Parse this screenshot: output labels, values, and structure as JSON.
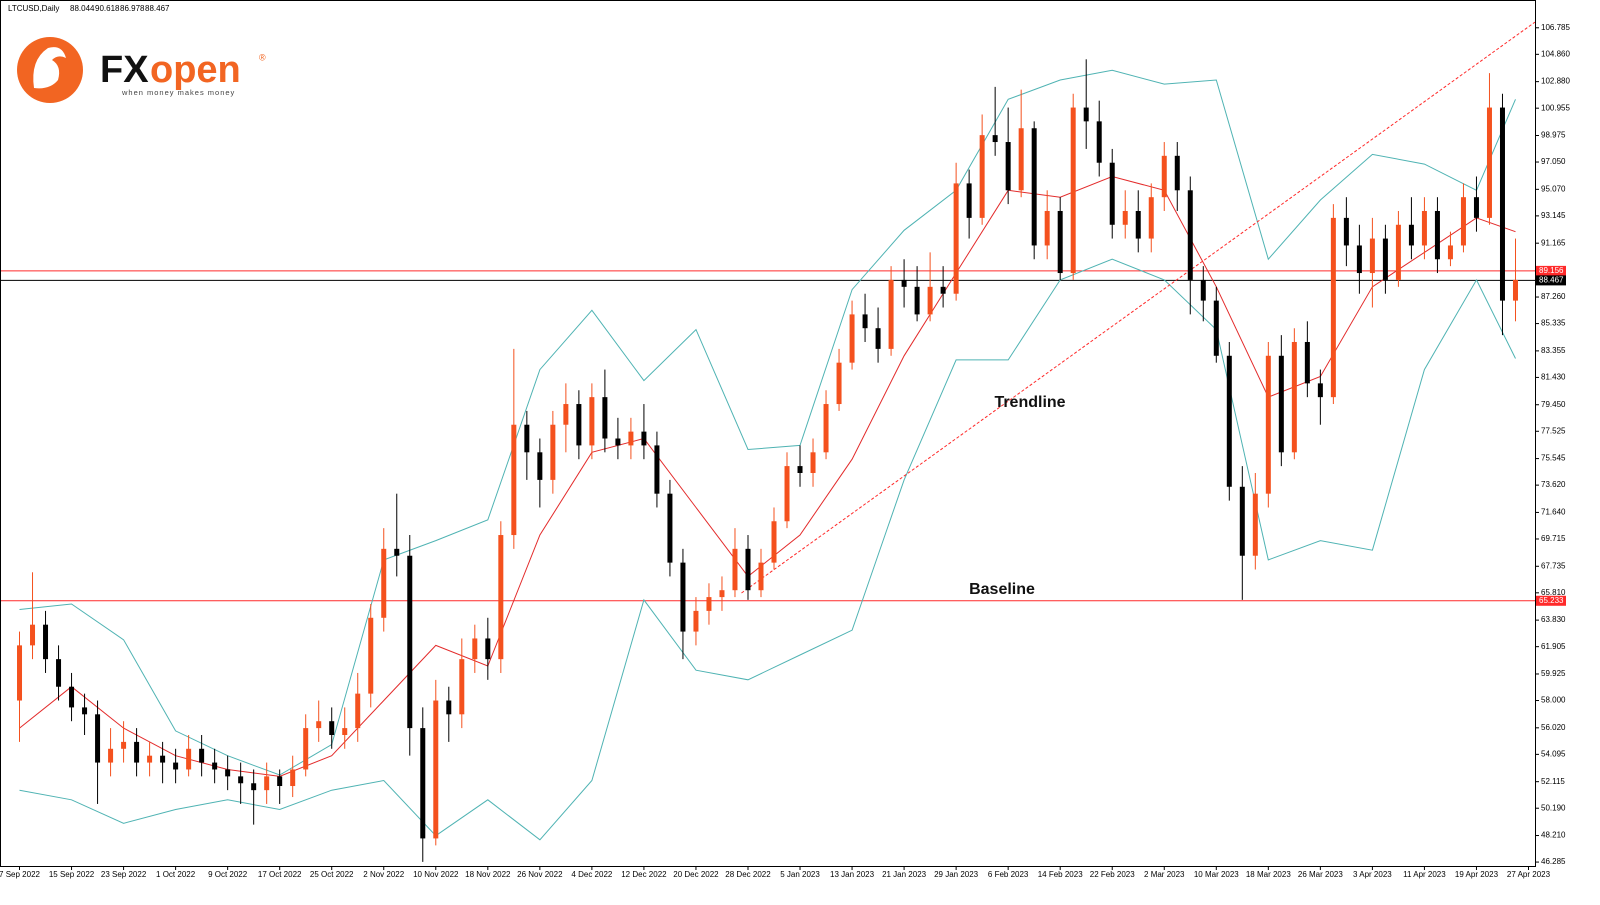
{
  "header": {
    "symbol": "LTCUSD,Daily",
    "ohlc": [
      88.044,
      90.618,
      86.978,
      88.467
    ]
  },
  "logo": {
    "brand_dark": "FX",
    "brand_light": "open",
    "mark": "®",
    "slogan": "when money makes money"
  },
  "chart_data": {
    "type": "candlestick",
    "up_color": "#f4511e",
    "down_color": "#000000",
    "xlim": [
      "2022-09-04",
      "2023-04-28"
    ],
    "ylim": [
      46.0,
      108.8
    ],
    "xticks": [
      {
        "value": "2022-09-07",
        "label": "7 Sep 2022"
      },
      {
        "value": "2022-09-15",
        "label": "15 Sep 2022"
      },
      {
        "value": "2022-09-23",
        "label": "23 Sep 2022"
      },
      {
        "value": "2022-10-01",
        "label": "1 Oct 2022"
      },
      {
        "value": "2022-10-09",
        "label": "9 Oct 2022"
      },
      {
        "value": "2022-10-17",
        "label": "17 Oct 2022"
      },
      {
        "value": "2022-10-25",
        "label": "25 Oct 2022"
      },
      {
        "value": "2022-11-02",
        "label": "2 Nov 2022"
      },
      {
        "value": "2022-11-10",
        "label": "10 Nov 2022"
      },
      {
        "value": "2022-11-18",
        "label": "18 Nov 2022"
      },
      {
        "value": "2022-11-26",
        "label": "26 Nov 2022"
      },
      {
        "value": "2022-12-04",
        "label": "4 Dec 2022"
      },
      {
        "value": "2022-12-12",
        "label": "12 Dec 2022"
      },
      {
        "value": "2022-12-20",
        "label": "20 Dec 2022"
      },
      {
        "value": "2022-12-28",
        "label": "28 Dec 2022"
      },
      {
        "value": "2023-01-05",
        "label": "5 Jan 2023"
      },
      {
        "value": "2023-01-13",
        "label": "13 Jan 2023"
      },
      {
        "value": "2023-01-21",
        "label": "21 Jan 2023"
      },
      {
        "value": "2023-01-29",
        "label": "29 Jan 2023"
      },
      {
        "value": "2023-02-06",
        "label": "6 Feb 2023"
      },
      {
        "value": "2023-02-14",
        "label": "14 Feb 2023"
      },
      {
        "value": "2023-02-22",
        "label": "22 Feb 2023"
      },
      {
        "value": "2023-03-02",
        "label": "2 Mar 2023"
      },
      {
        "value": "2023-03-10",
        "label": "10 Mar 2023"
      },
      {
        "value": "2023-03-18",
        "label": "18 Mar 2023"
      },
      {
        "value": "2023-03-26",
        "label": "26 Mar 2023"
      },
      {
        "value": "2023-04-03",
        "label": "3 Apr 2023"
      },
      {
        "value": "2023-04-11",
        "label": "11 Apr 2023"
      },
      {
        "value": "2023-04-19",
        "label": "19 Apr 2023"
      },
      {
        "value": "2023-04-27",
        "label": "27 Apr 2023"
      }
    ],
    "yticks": [
      106.785,
      {
        "value": 104.86,
        "label": "104.860"
      },
      {
        "value": 102.88,
        "label": "102.880"
      },
      100.955,
      98.975,
      {
        "value": 97.05,
        "label": "97.050"
      },
      {
        "value": 95.07,
        "label": "95.070"
      },
      93.145,
      91.165,
      {
        "value": 87.26,
        "label": "87.260"
      },
      85.335,
      83.355,
      {
        "value": 81.43,
        "label": "81.430"
      },
      {
        "value": 79.45,
        "label": "79.450"
      },
      77.525,
      75.545,
      {
        "value": 73.62,
        "label": "73.620"
      },
      {
        "value": 71.64,
        "label": "71.640"
      },
      69.715,
      67.735,
      {
        "value": 65.81,
        "label": "65.810"
      },
      {
        "value": 63.83,
        "label": "63.830"
      },
      61.905,
      59.925,
      {
        "value": 58.0,
        "label": "58.000"
      },
      {
        "value": 56.02,
        "label": "56.020"
      },
      54.095,
      52.115,
      {
        "value": 50.19,
        "label": "50.190"
      },
      {
        "value": 48.21,
        "label": "48.210"
      },
      46.285
    ],
    "hlines": [
      {
        "value": 89.156,
        "color": "#ff2a2a"
      },
      {
        "value": 88.467,
        "color": "#000000"
      },
      {
        "value": 65.233,
        "color": "#ff2a2a"
      }
    ],
    "annotations": [
      "Trendline",
      "Baseline"
    ],
    "trendline": {
      "color": "#ff2a2a",
      "x": [
        "2022-12-27",
        "2023-04-28"
      ],
      "values": [
        65.8,
        107.2
      ]
    },
    "candles": {
      "x": [
        "2022-09-07",
        "2022-09-09",
        "2022-09-11",
        "2022-09-13",
        "2022-09-15",
        "2022-09-17",
        "2022-09-19",
        "2022-09-21",
        "2022-09-23",
        "2022-09-25",
        "2022-09-27",
        "2022-09-29",
        "2022-10-01",
        "2022-10-03",
        "2022-10-05",
        "2022-10-07",
        "2022-10-09",
        "2022-10-11",
        "2022-10-13",
        "2022-10-15",
        "2022-10-17",
        "2022-10-19",
        "2022-10-21",
        "2022-10-23",
        "2022-10-25",
        "2022-10-27",
        "2022-10-29",
        "2022-10-31",
        "2022-11-02",
        "2022-11-04",
        "2022-11-06",
        "2022-11-08",
        "2022-11-10",
        "2022-11-12",
        "2022-11-14",
        "2022-11-16",
        "2022-11-18",
        "2022-11-20",
        "2022-11-22",
        "2022-11-24",
        "2022-11-26",
        "2022-11-28",
        "2022-11-30",
        "2022-12-02",
        "2022-12-04",
        "2022-12-06",
        "2022-12-08",
        "2022-12-10",
        "2022-12-12",
        "2022-12-14",
        "2022-12-16",
        "2022-12-18",
        "2022-12-20",
        "2022-12-22",
        "2022-12-24",
        "2022-12-26",
        "2022-12-28",
        "2022-12-30",
        "2023-01-01",
        "2023-01-03",
        "2023-01-05",
        "2023-01-07",
        "2023-01-09",
        "2023-01-11",
        "2023-01-13",
        "2023-01-15",
        "2023-01-17",
        "2023-01-19",
        "2023-01-21",
        "2023-01-23",
        "2023-01-25",
        "2023-01-27",
        "2023-01-29",
        "2023-01-31",
        "2023-02-02",
        "2023-02-04",
        "2023-02-06",
        "2023-02-08",
        "2023-02-10",
        "2023-02-12",
        "2023-02-14",
        "2023-02-16",
        "2023-02-18",
        "2023-02-20",
        "2023-02-22",
        "2023-02-24",
        "2023-02-26",
        "2023-02-28",
        "2023-03-02",
        "2023-03-04",
        "2023-03-06",
        "2023-03-08",
        "2023-03-10",
        "2023-03-12",
        "2023-03-14",
        "2023-03-16",
        "2023-03-18",
        "2023-03-20",
        "2023-03-22",
        "2023-03-24",
        "2023-03-26",
        "2023-03-28",
        "2023-03-30",
        "2023-04-01",
        "2023-04-03",
        "2023-04-05",
        "2023-04-07",
        "2023-04-09",
        "2023-04-11",
        "2023-04-13",
        "2023-04-15",
        "2023-04-17",
        "2023-04-19",
        "2023-04-21",
        "2023-04-23",
        "2023-04-25"
      ],
      "open": [
        58,
        62,
        63.5,
        61,
        59,
        57.5,
        57,
        53.5,
        54.5,
        55,
        53.5,
        54,
        53.5,
        53,
        54.5,
        53.5,
        53,
        52.5,
        52,
        51.5,
        52.5,
        51.8,
        53,
        56,
        56.5,
        55.5,
        56,
        58.5,
        64,
        69,
        68.5,
        56,
        48,
        58,
        57,
        61,
        62.5,
        61,
        70,
        78,
        76,
        74,
        78,
        79.5,
        76.5,
        80,
        77,
        76.5,
        77.5,
        76.5,
        73,
        68,
        63,
        64.5,
        65.5,
        66,
        69,
        66,
        68,
        71,
        75,
        74.5,
        76,
        79.5,
        82.5,
        86,
        85,
        83.5,
        88.5,
        88,
        86,
        88,
        87.5,
        95.5,
        93,
        99,
        98.5,
        95,
        99.5,
        91,
        93.5,
        89,
        101,
        100,
        97,
        92.5,
        93.5,
        91.5,
        94.5,
        97.5,
        95,
        88.5,
        87,
        83,
        73.5,
        68.5,
        73,
        83,
        76,
        84,
        81,
        80,
        93,
        91,
        89,
        91.5,
        88.5,
        92.5,
        91,
        93.5,
        90,
        91,
        94.5,
        93,
        101,
        87
      ],
      "high": [
        63,
        67.3,
        64.5,
        62,
        60,
        58.5,
        58,
        56,
        56.5,
        56,
        55,
        55,
        54.5,
        55.5,
        55.5,
        54.5,
        54,
        53.5,
        53,
        53.5,
        53,
        54,
        57,
        58,
        57.5,
        57.5,
        60,
        65,
        70.5,
        73,
        70,
        57.5,
        59.5,
        59,
        62.5,
        63.5,
        64,
        71,
        83.5,
        79,
        77,
        79,
        81,
        80.5,
        81,
        82,
        78.5,
        78.5,
        79.5,
        77.5,
        74,
        69,
        65.5,
        66.5,
        67,
        70.5,
        70,
        69,
        72,
        76,
        76.5,
        77,
        80.5,
        83.5,
        87,
        87.5,
        86.5,
        89.5,
        90,
        89.5,
        90.5,
        89.5,
        97,
        96.5,
        100.5,
        102.5,
        101,
        102.3,
        100,
        95,
        94.5,
        102,
        104.5,
        101.5,
        98,
        95,
        95,
        95.5,
        98.5,
        98.5,
        96,
        89.5,
        88,
        84,
        75,
        74.5,
        84,
        84.5,
        85,
        85.5,
        82,
        94,
        94.5,
        92.5,
        93,
        92.5,
        93.5,
        94.5,
        94.5,
        94.5,
        92,
        95.5,
        96,
        103.5,
        102,
        91.5
      ],
      "low": [
        55,
        61,
        60,
        58,
        56.5,
        55.5,
        50.5,
        52.5,
        53.5,
        52.5,
        52.5,
        52,
        52,
        52.5,
        52.5,
        52,
        51.5,
        50.5,
        49,
        50.5,
        50.5,
        51,
        52.5,
        55,
        54.5,
        54.5,
        55,
        57.5,
        63,
        67,
        54,
        46.3,
        47.5,
        55,
        56,
        60,
        59.5,
        60,
        69,
        74,
        72,
        73,
        76,
        75.5,
        75.5,
        76,
        75.5,
        75.5,
        75.5,
        72,
        67,
        61,
        62,
        63.5,
        64.5,
        65.5,
        65.3,
        65.5,
        67.5,
        70.5,
        73.5,
        73.5,
        75.5,
        79,
        82,
        84,
        82.5,
        83,
        86.5,
        85.5,
        85.5,
        86.5,
        87,
        91.5,
        92.5,
        97.5,
        94,
        94.5,
        90,
        90,
        88.5,
        88.5,
        98,
        96,
        91.5,
        91.5,
        90.5,
        90.5,
        93.5,
        93.5,
        86,
        85.5,
        82.5,
        72.5,
        65.3,
        67.5,
        72,
        75,
        75.5,
        80,
        78,
        79.5,
        89.5,
        87.5,
        86.5,
        87.5,
        88,
        90,
        90,
        89,
        89.5,
        90.5,
        92,
        92.5,
        84.5,
        85.5
      ],
      "close": [
        62,
        63.5,
        61,
        59,
        57.5,
        57,
        53.5,
        54.5,
        55,
        53.5,
        54,
        53.5,
        53,
        54.5,
        53.5,
        53,
        52.5,
        52,
        51.5,
        52.5,
        51.8,
        53,
        56,
        56.5,
        55.5,
        56,
        58.5,
        64,
        69,
        68.5,
        56,
        48,
        58,
        57,
        61,
        62.5,
        61,
        70,
        78,
        76,
        74,
        78,
        79.5,
        76.5,
        80,
        77,
        76.5,
        77.5,
        76.5,
        73,
        68,
        63,
        64.5,
        65.5,
        66,
        69,
        66,
        68,
        71,
        75,
        74.5,
        76,
        79.5,
        82.5,
        86,
        85,
        83.5,
        88.5,
        88,
        86,
        88,
        87.5,
        95.5,
        93,
        99,
        98.5,
        95,
        99.5,
        91,
        93.5,
        89,
        101,
        100,
        97,
        92.5,
        93.5,
        91.5,
        94.5,
        97.5,
        95,
        88.5,
        87,
        83,
        73.5,
        68.5,
        73,
        83,
        76,
        84,
        81,
        80,
        93,
        91,
        89,
        91.5,
        88.5,
        92.5,
        91,
        93.5,
        90,
        91,
        94.5,
        93,
        101,
        87,
        88.5
      ]
    },
    "series": [
      {
        "color": "#4fb3b3",
        "x": [
          "2022-09-07",
          "2022-09-15",
          "2022-09-23",
          "2022-10-01",
          "2022-10-09",
          "2022-10-17",
          "2022-10-25",
          "2022-11-02",
          "2022-11-10",
          "2022-11-18",
          "2022-11-26",
          "2022-12-04",
          "2022-12-12",
          "2022-12-20",
          "2022-12-28",
          "2023-01-05",
          "2023-01-13",
          "2023-01-21",
          "2023-01-29",
          "2023-02-06",
          "2023-02-14",
          "2023-02-22",
          "2023-03-02",
          "2023-03-10",
          "2023-03-18",
          "2023-03-26",
          "2023-04-03",
          "2023-04-11",
          "2023-04-19",
          "2023-04-25"
        ],
        "values": [
          64.6,
          65,
          62.4,
          55.8,
          54,
          52.6,
          54.8,
          68.2,
          69.6,
          71.1,
          82,
          86.3,
          81.2,
          84.9,
          76.2,
          76.5,
          87.8,
          92.1,
          95,
          101.6,
          103,
          103.7,
          102.7,
          103,
          90,
          94.3,
          97.6,
          96.9,
          95,
          101.6
        ]
      },
      {
        "color": "#4fb3b3",
        "x": [
          "2022-09-07",
          "2022-09-15",
          "2022-09-23",
          "2022-10-01",
          "2022-10-09",
          "2022-10-17",
          "2022-10-25",
          "2022-11-02",
          "2022-11-10",
          "2022-11-18",
          "2022-11-26",
          "2022-12-04",
          "2022-12-12",
          "2022-12-20",
          "2022-12-28",
          "2023-01-05",
          "2023-01-13",
          "2023-01-21",
          "2023-01-29",
          "2023-02-06",
          "2023-02-14",
          "2023-02-22",
          "2023-03-02",
          "2023-03-10",
          "2023-03-18",
          "2023-03-26",
          "2023-04-03",
          "2023-04-11",
          "2023-04-19",
          "2023-04-25"
        ],
        "values": [
          51.5,
          50.8,
          49.1,
          50.1,
          50.8,
          50.1,
          51.5,
          52.2,
          48.2,
          50.8,
          47.9,
          52.2,
          65.3,
          60.2,
          59.5,
          61.3,
          63.1,
          74,
          82.7,
          82.7,
          88.5,
          90,
          88.5,
          84.9,
          68.2,
          69.6,
          68.9,
          82,
          88.5,
          82.8
        ]
      },
      {
        "color": "#e32b2b",
        "x": [
          "2022-09-07",
          "2022-09-15",
          "2022-09-23",
          "2022-10-01",
          "2022-10-09",
          "2022-10-17",
          "2022-10-25",
          "2022-11-02",
          "2022-11-10",
          "2022-11-18",
          "2022-11-26",
          "2022-12-04",
          "2022-12-12",
          "2022-12-20",
          "2022-12-28",
          "2023-01-05",
          "2023-01-13",
          "2023-01-21",
          "2023-01-29",
          "2023-02-06",
          "2023-02-14",
          "2023-02-22",
          "2023-03-02",
          "2023-03-10",
          "2023-03-18",
          "2023-03-26",
          "2023-04-03",
          "2023-04-11",
          "2023-04-19",
          "2023-04-25"
        ],
        "values": [
          56,
          59,
          56,
          54,
          53,
          52.5,
          54,
          58,
          62,
          60.5,
          70,
          76,
          77,
          72,
          67,
          70,
          75.5,
          83,
          89,
          95,
          94.5,
          96,
          95,
          88,
          80,
          81.5,
          88,
          90.5,
          93,
          92
        ]
      }
    ]
  }
}
